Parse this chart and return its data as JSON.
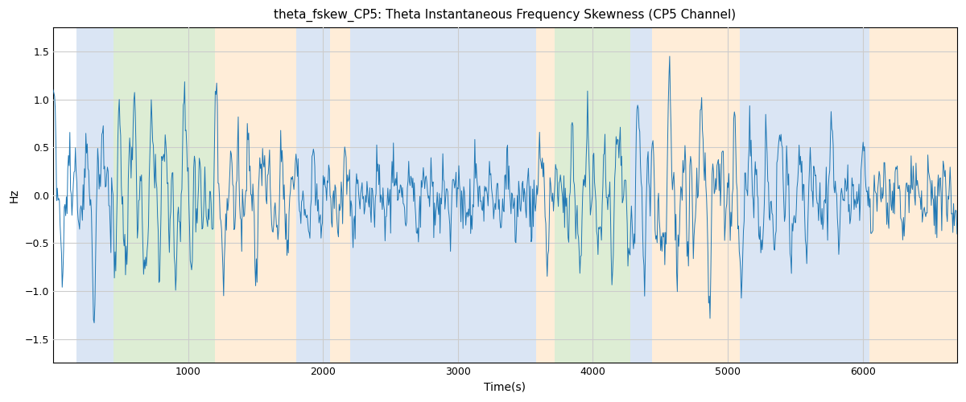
{
  "title": "theta_fskew_CP5: Theta Instantaneous Frequency Skewness (CP5 Channel)",
  "xlabel": "Time(s)",
  "ylabel": "Hz",
  "xlim": [
    0,
    6700
  ],
  "ylim": [
    -1.75,
    1.75
  ],
  "yticks": [
    -1.5,
    -1.0,
    -0.5,
    0.0,
    0.5,
    1.0,
    1.5
  ],
  "xticks": [
    1000,
    2000,
    3000,
    4000,
    5000,
    6000
  ],
  "line_color": "#1f77b4",
  "line_width": 0.7,
  "grid_color": "#cccccc",
  "bands": [
    {
      "xmin": 170,
      "xmax": 450,
      "color": "#aec6e8",
      "alpha": 0.45
    },
    {
      "xmin": 450,
      "xmax": 1200,
      "color": "#b5d9a0",
      "alpha": 0.45
    },
    {
      "xmin": 1200,
      "xmax": 1800,
      "color": "#ffd9aa",
      "alpha": 0.45
    },
    {
      "xmin": 1800,
      "xmax": 2050,
      "color": "#aec6e8",
      "alpha": 0.45
    },
    {
      "xmin": 2050,
      "xmax": 2200,
      "color": "#ffd9aa",
      "alpha": 0.45
    },
    {
      "xmin": 2200,
      "xmax": 3580,
      "color": "#aec6e8",
      "alpha": 0.45
    },
    {
      "xmin": 3580,
      "xmax": 3720,
      "color": "#ffd9aa",
      "alpha": 0.45
    },
    {
      "xmin": 3720,
      "xmax": 4280,
      "color": "#b5d9a0",
      "alpha": 0.45
    },
    {
      "xmin": 4280,
      "xmax": 4440,
      "color": "#aec6e8",
      "alpha": 0.45
    },
    {
      "xmin": 4440,
      "xmax": 5090,
      "color": "#ffd9aa",
      "alpha": 0.45
    },
    {
      "xmin": 5090,
      "xmax": 6050,
      "color": "#aec6e8",
      "alpha": 0.45
    },
    {
      "xmin": 6050,
      "xmax": 6700,
      "color": "#ffd9aa",
      "alpha": 0.45
    }
  ],
  "figsize": [
    12.0,
    5.0
  ],
  "dpi": 100
}
